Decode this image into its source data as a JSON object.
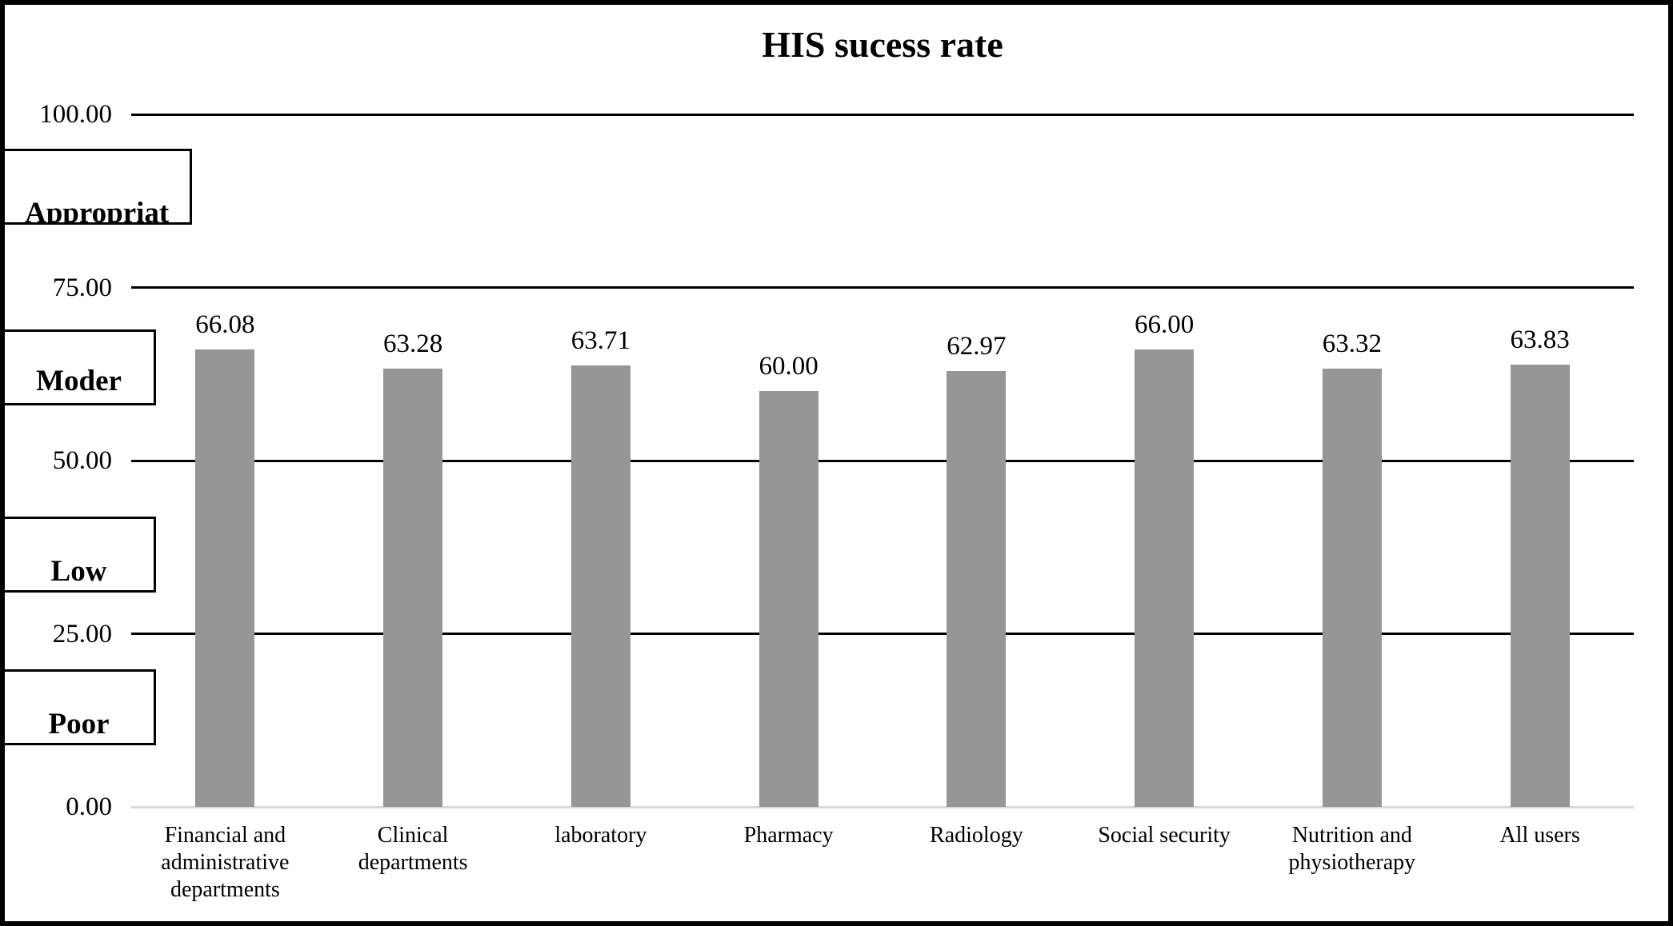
{
  "chart_data": {
    "type": "bar",
    "title": "HIS sucess rate",
    "categories": [
      "Financial and administrative departments",
      "Clinical departments",
      "laboratory",
      "Pharmacy",
      "Radiology",
      "Social security",
      "Nutrition and physiotherapy",
      "All users"
    ],
    "values": [
      66.08,
      63.28,
      63.71,
      60.0,
      62.97,
      66.0,
      63.32,
      63.83
    ],
    "data_labels": [
      "66.08",
      "63.28",
      "63.71",
      "60.00",
      "62.97",
      "66.00",
      "63.32",
      "63.83"
    ],
    "xlabel": "",
    "ylabel": "",
    "ylim": [
      0,
      100
    ],
    "y_ticks": [
      {
        "value": 0,
        "label": "0.00"
      },
      {
        "value": 25,
        "label": "25.00"
      },
      {
        "value": 50,
        "label": "50.00"
      },
      {
        "value": 75,
        "label": "75.00"
      },
      {
        "value": 100,
        "label": "100.00"
      }
    ],
    "grid": "horizontal gridlines on, vertical off",
    "legend": "none",
    "rating_zones": [
      {
        "label": "Appropriat",
        "band": [
          75,
          100
        ]
      },
      {
        "label": "Moder",
        "band": [
          50,
          75
        ]
      },
      {
        "label": "Low",
        "band": [
          25,
          50
        ]
      },
      {
        "label": "Poor",
        "band": [
          0,
          25
        ]
      }
    ],
    "colors": {
      "bar": "#969696",
      "gridline": "#000000",
      "baseline": "#d9d9d9",
      "background": "#ffffff",
      "border": "#000000",
      "text": "#000000"
    }
  }
}
